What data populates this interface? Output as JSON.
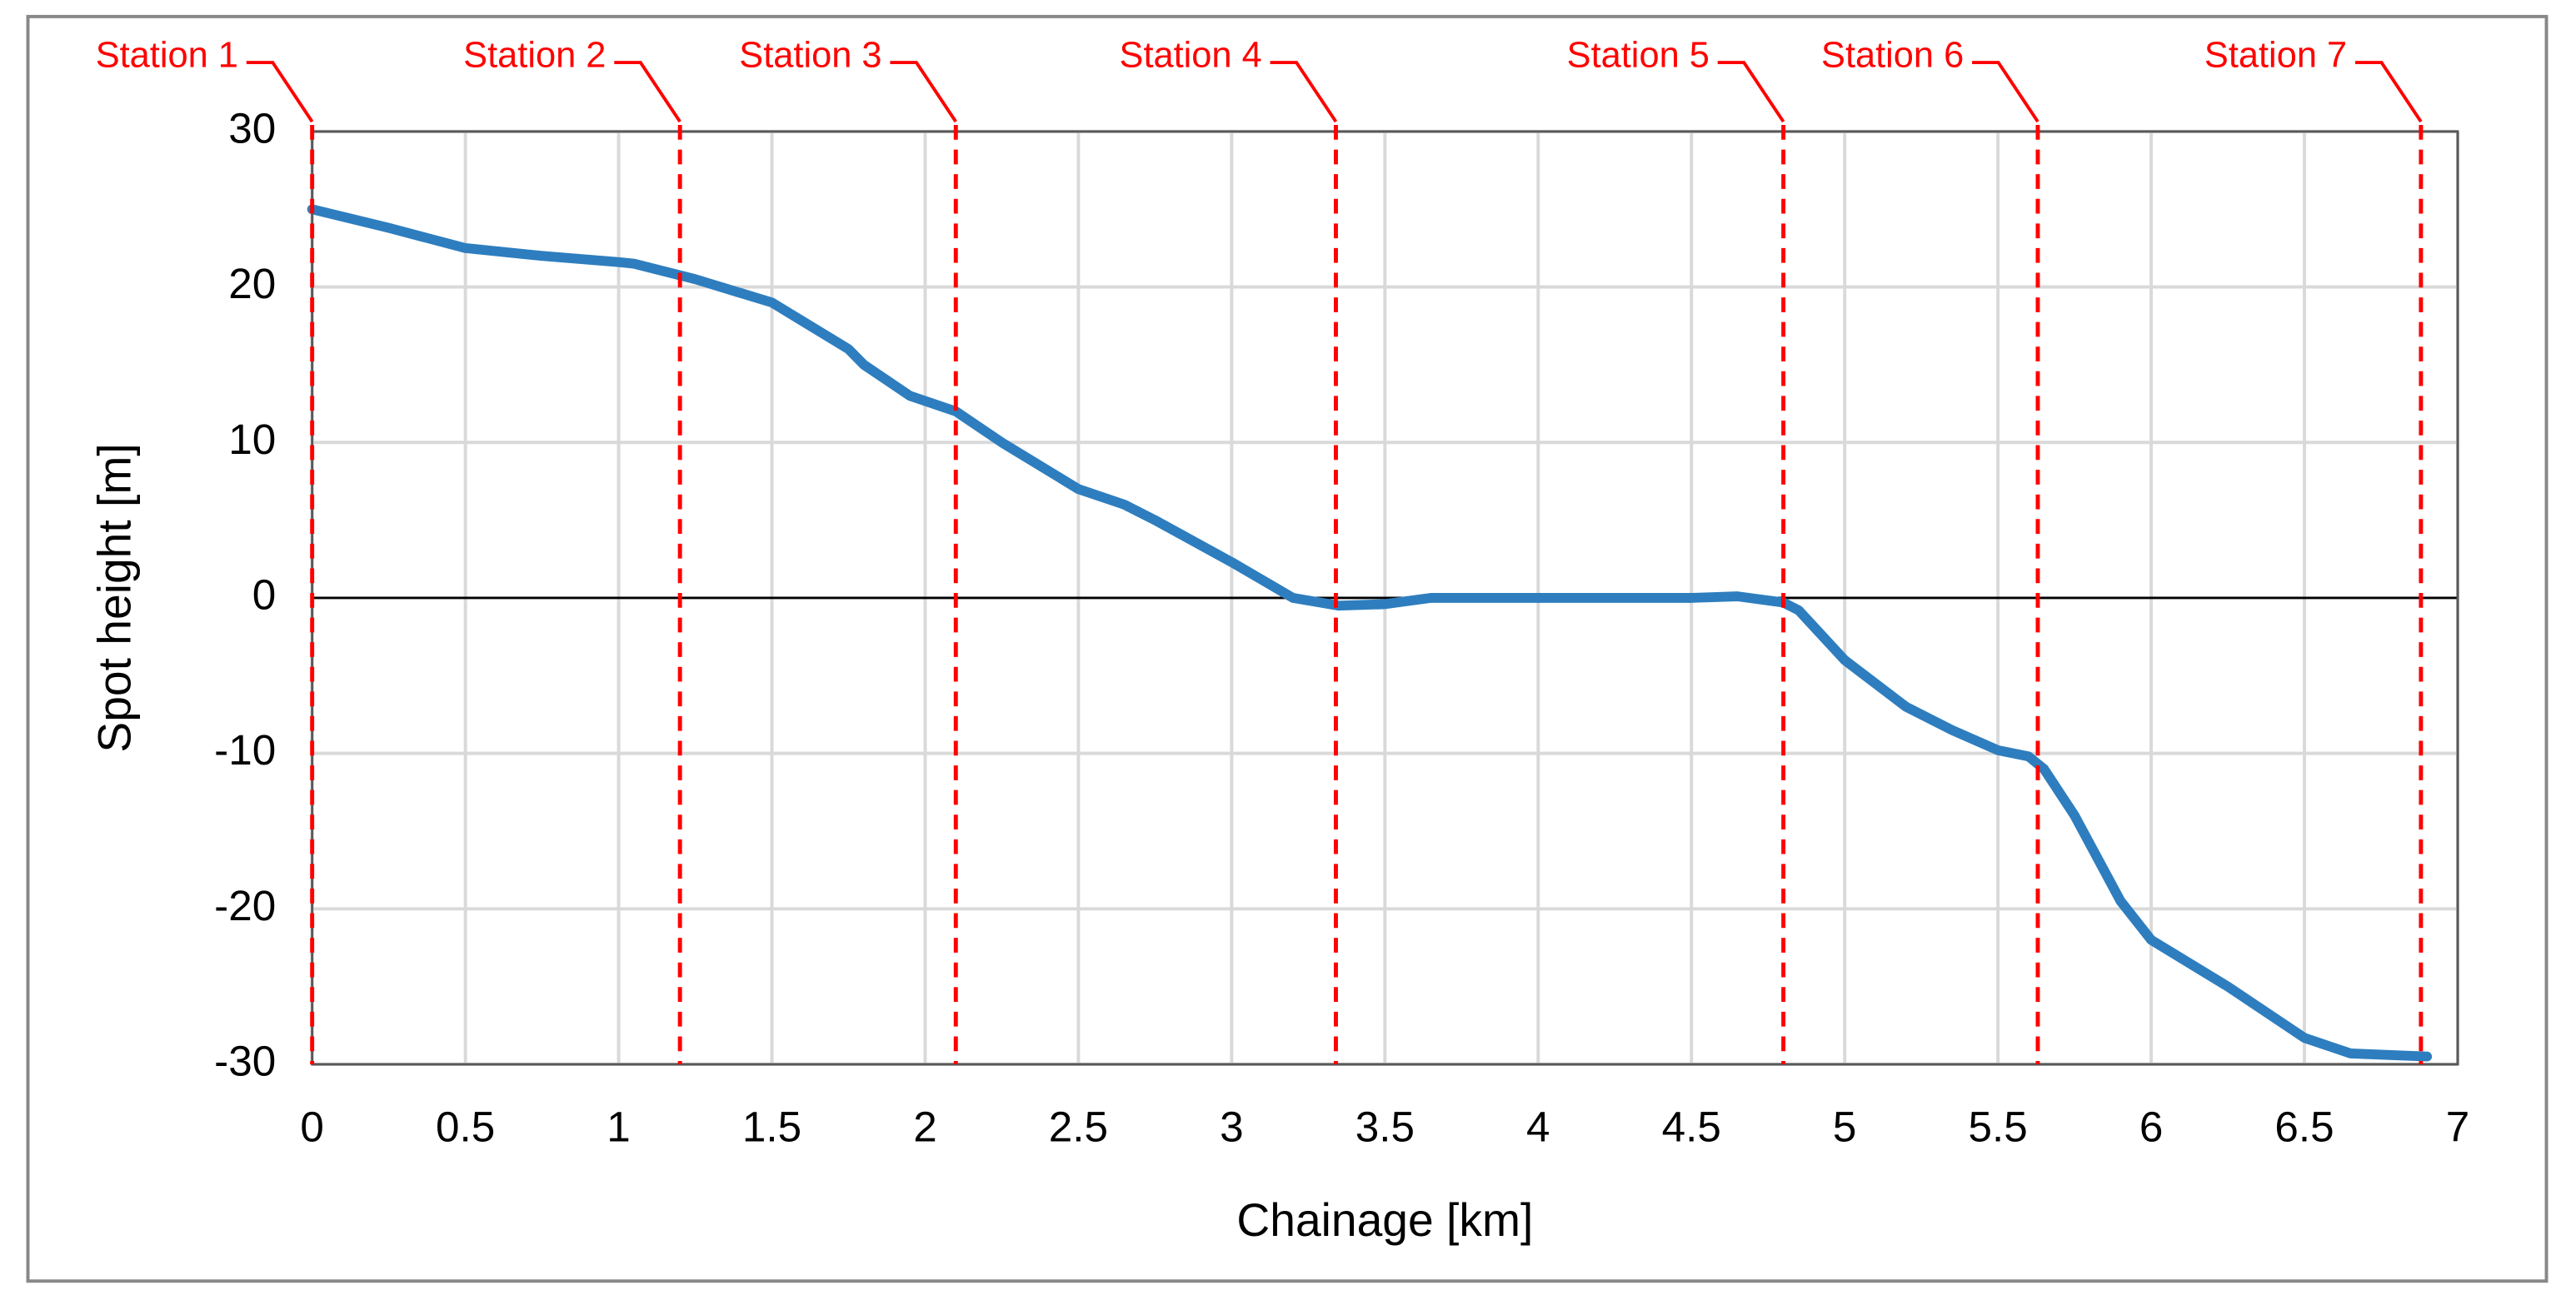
{
  "chart_data": {
    "type": "line",
    "x_label": "Chainage [km]",
    "y_label": "Spot height [m]",
    "xlim": [
      0,
      7
    ],
    "xticks": [
      0,
      0.5,
      1,
      1.5,
      2,
      2.5,
      3,
      3.5,
      4,
      4.5,
      5,
      5.5,
      6,
      6.5,
      7
    ],
    "ylim": [
      -30,
      30
    ],
    "yticks": [
      -30,
      -20,
      -10,
      0,
      10,
      20,
      30
    ],
    "grid": true,
    "x": [
      0,
      0.25,
      0.5,
      0.75,
      1,
      1.05,
      1.25,
      1.5,
      1.75,
      1.8,
      1.95,
      2.1,
      2.25,
      2.5,
      2.65,
      2.75,
      3,
      3.2,
      3.35,
      3.5,
      3.65,
      4,
      4.5,
      4.65,
      4.8,
      4.85,
      5,
      5.2,
      5.35,
      5.5,
      5.6,
      5.65,
      5.75,
      5.9,
      6,
      6.25,
      6.5,
      6.65,
      6.9
    ],
    "series": [
      {
        "name": "Spot height",
        "color": "#2e7ebf",
        "values": [
          25,
          23.8,
          22.5,
          22,
          21.6,
          21.5,
          20.5,
          19,
          16,
          15,
          13,
          12,
          10,
          7,
          6,
          5,
          2.3,
          0,
          -0.5,
          -0.4,
          0,
          0,
          0,
          0.1,
          -0.3,
          -0.8,
          -4,
          -7,
          -8.5,
          -9.8,
          -10.2,
          -11,
          -14,
          -19.5,
          -22,
          -25,
          -28.3,
          -29.3,
          -29.5
        ]
      }
    ],
    "stations": {
      "color": "#ff0000",
      "names": [
        "Station 1",
        "Station 2",
        "Station 3",
        "Station 4",
        "Station 5",
        "Station 6",
        "Station 7"
      ],
      "x": [
        0,
        1.2,
        2.1,
        3.34,
        4.8,
        5.63,
        6.88
      ]
    }
  }
}
